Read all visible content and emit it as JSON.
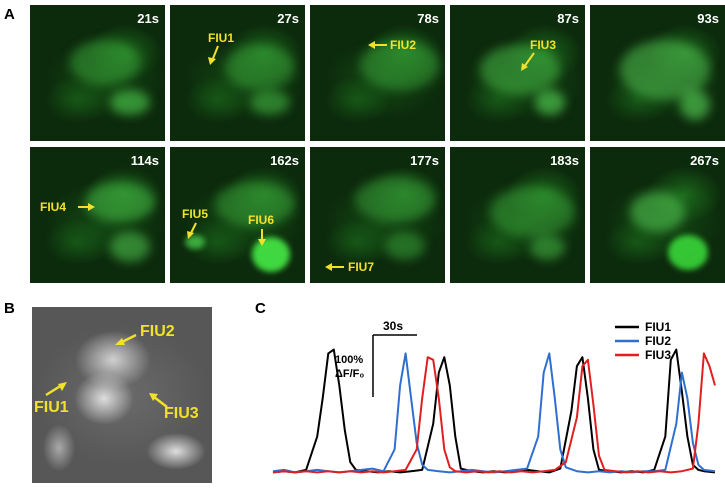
{
  "panels": {
    "a_label": "A",
    "b_label": "B",
    "c_label": "C"
  },
  "tiles": [
    {
      "time": "21s"
    },
    {
      "time": "27s",
      "label": "FIU1"
    },
    {
      "time": "78s",
      "label": "FIU2"
    },
    {
      "time": "87s",
      "label": "FIU3"
    },
    {
      "time": "93s"
    },
    {
      "time": "114s",
      "label": "FIU4"
    },
    {
      "time": "162s",
      "label": "FIU5",
      "label2": "FIU6"
    },
    {
      "time": "177s",
      "label": "FIU7"
    },
    {
      "time": "183s"
    },
    {
      "time": "267s"
    }
  ],
  "panel_b": {
    "labels": [
      "FIU2",
      "FIU1",
      "FIU3"
    ]
  },
  "colors": {
    "fluor_green": "#33d633",
    "label_yellow": "#f2e12a",
    "FIU1": "#000000",
    "FIU2": "#2f6fcf",
    "FIU3": "#e02020"
  },
  "chart_data": {
    "type": "line",
    "scale_time_label": "30s",
    "scale_amp_label_line1": "100%",
    "scale_amp_label_line2": "ΔF/F₀",
    "series": [
      {
        "name": "FIU1",
        "color": "#000000",
        "x": [
          0,
          4,
          8,
          12,
          16,
          18,
          20,
          22,
          24,
          26,
          28,
          30,
          34,
          38,
          42,
          46,
          50,
          54,
          58,
          60,
          62,
          64,
          66,
          68,
          72,
          76,
          80,
          84,
          88,
          92,
          96,
          100,
          104,
          108,
          110,
          112,
          114,
          116,
          118,
          122,
          126,
          130,
          134,
          138,
          142,
          144,
          146,
          148,
          150,
          152,
          154,
          156,
          160
        ],
        "y": [
          2,
          3,
          2,
          4,
          30,
          60,
          95,
          98,
          70,
          35,
          10,
          4,
          3,
          2,
          3,
          2,
          3,
          4,
          40,
          80,
          92,
          70,
          30,
          5,
          3,
          2,
          3,
          2,
          3,
          4,
          3,
          2,
          5,
          50,
          85,
          92,
          60,
          20,
          4,
          3,
          2,
          3,
          2,
          4,
          30,
          90,
          98,
          65,
          30,
          8,
          4,
          3,
          2
        ]
      },
      {
        "name": "FIU2",
        "color": "#2f6fcf",
        "x": [
          0,
          4,
          8,
          12,
          16,
          20,
          24,
          28,
          32,
          36,
          40,
          44,
          46,
          48,
          50,
          52,
          54,
          56,
          60,
          64,
          68,
          72,
          76,
          80,
          84,
          88,
          92,
          96,
          98,
          100,
          102,
          104,
          106,
          110,
          114,
          118,
          122,
          126,
          130,
          134,
          138,
          142,
          146,
          148,
          150,
          152,
          154,
          156,
          160
        ],
        "y": [
          3,
          4,
          2,
          3,
          4,
          3,
          2,
          3,
          4,
          5,
          3,
          20,
          70,
          95,
          60,
          25,
          8,
          4,
          3,
          2,
          3,
          4,
          3,
          2,
          3,
          4,
          5,
          30,
          80,
          95,
          60,
          20,
          6,
          3,
          2,
          3,
          2,
          3,
          2,
          3,
          3,
          4,
          40,
          80,
          60,
          25,
          8,
          4,
          3
        ]
      },
      {
        "name": "FIU3",
        "color": "#e02020",
        "x": [
          0,
          4,
          8,
          12,
          16,
          20,
          24,
          28,
          32,
          36,
          40,
          44,
          48,
          52,
          54,
          56,
          58,
          60,
          62,
          64,
          66,
          70,
          74,
          78,
          82,
          86,
          90,
          94,
          98,
          102,
          106,
          110,
          112,
          114,
          116,
          118,
          120,
          124,
          128,
          132,
          136,
          140,
          144,
          148,
          152,
          154,
          156,
          158,
          160
        ],
        "y": [
          2,
          3,
          2,
          3,
          2,
          3,
          2,
          3,
          2,
          3,
          2,
          3,
          4,
          20,
          60,
          92,
          90,
          60,
          20,
          6,
          3,
          2,
          3,
          2,
          3,
          2,
          3,
          2,
          3,
          4,
          10,
          45,
          85,
          90,
          55,
          15,
          4,
          3,
          2,
          3,
          2,
          3,
          2,
          3,
          5,
          40,
          95,
          85,
          70
        ]
      }
    ],
    "xlim": [
      0,
      160
    ],
    "ylim": [
      0,
      100
    ],
    "legend": "top-right"
  }
}
